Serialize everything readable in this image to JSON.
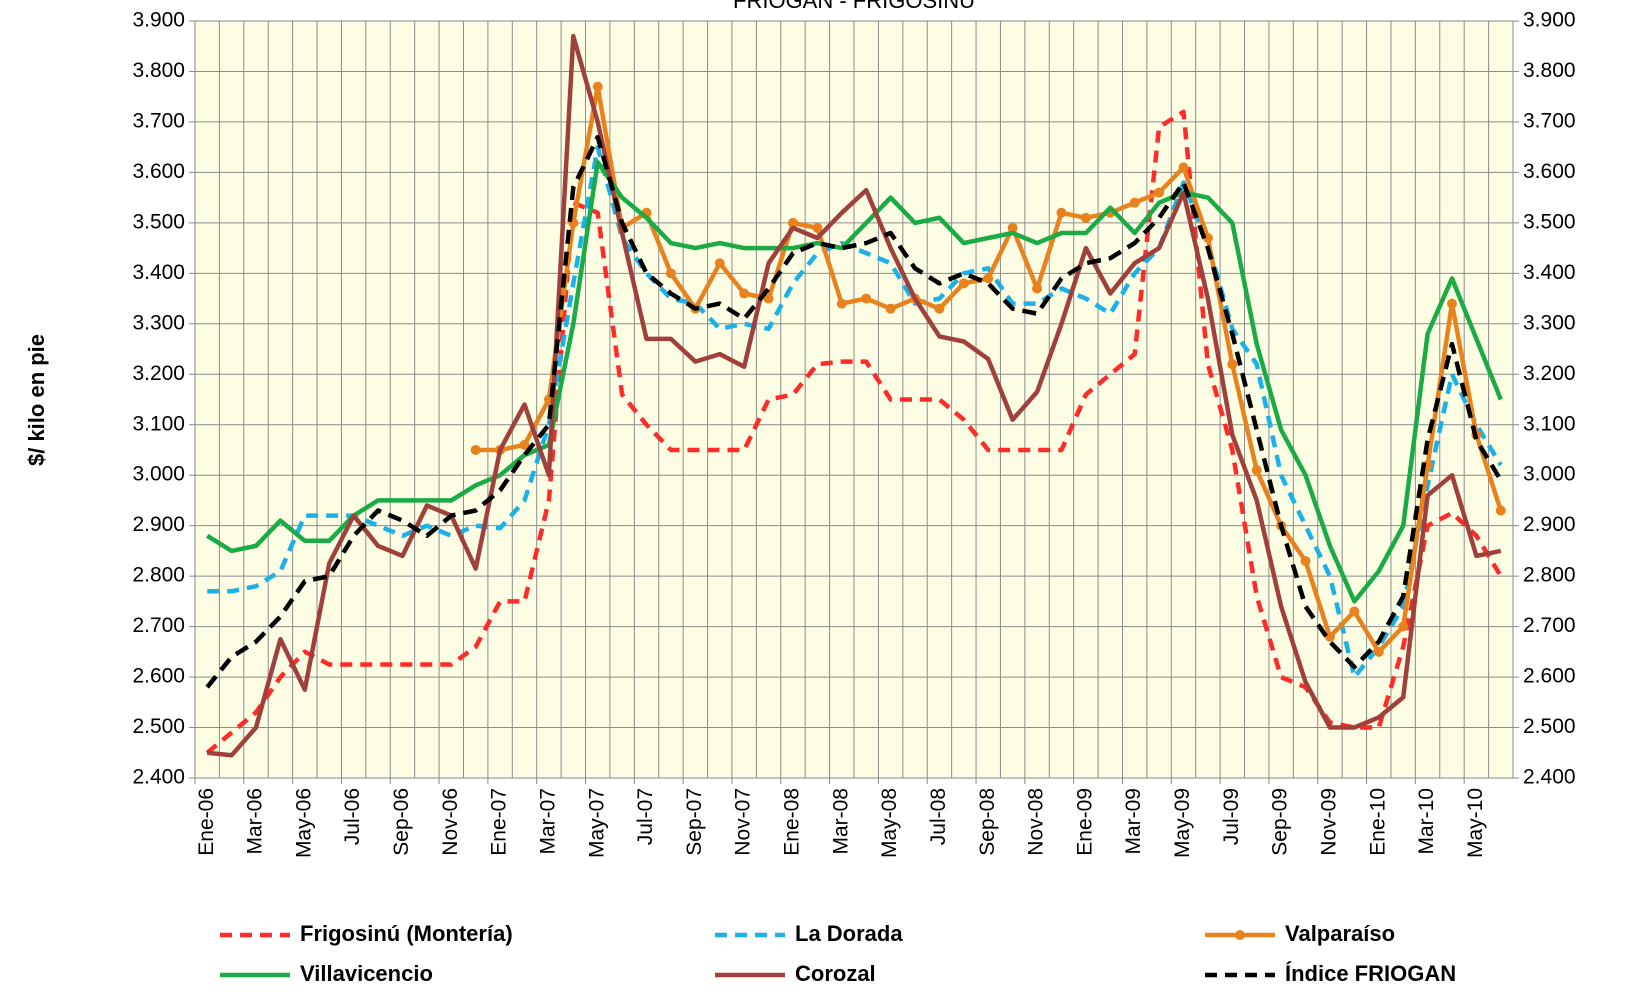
{
  "chart_data": {
    "type": "line",
    "title": "FRIOGAN - FRIGOSINU",
    "y_label": "$/ kilo en pie",
    "categories": [
      "Ene-06",
      null,
      "Mar-06",
      null,
      "May-06",
      null,
      "Jul-06",
      null,
      "Sep-06",
      null,
      "Nov-06",
      null,
      "Ene-07",
      null,
      "Mar-07",
      null,
      "May-07",
      null,
      "Jul-07",
      null,
      "Sep-07",
      null,
      "Nov-07",
      null,
      "Ene-08",
      null,
      "Mar-08",
      null,
      "May-08",
      null,
      "Jul-08",
      null,
      "Sep-08",
      null,
      "Nov-08",
      null,
      "Ene-09",
      null,
      "Mar-09",
      null,
      "May-09",
      null,
      "Jul-09",
      null,
      "Sep-09",
      null,
      "Nov-09",
      null,
      "Ene-10",
      null,
      "Mar-10",
      null,
      "May-10",
      null
    ],
    "ylim": [
      2400,
      3900
    ],
    "yticks": [
      {
        "value": 2400,
        "label": "2.400"
      },
      {
        "value": 2500,
        "label": "2.500"
      },
      {
        "value": 2600,
        "label": "2.600"
      },
      {
        "value": 2700,
        "label": "2.700"
      },
      {
        "value": 2800,
        "label": "2.800"
      },
      {
        "value": 2900,
        "label": "2.900"
      },
      {
        "value": 3000,
        "label": "3.000"
      },
      {
        "value": 3100,
        "label": "3.100"
      },
      {
        "value": 3200,
        "label": "3.200"
      },
      {
        "value": 3300,
        "label": "3.300"
      },
      {
        "value": 3400,
        "label": "3.400"
      },
      {
        "value": 3500,
        "label": "3.500"
      },
      {
        "value": 3600,
        "label": "3.600"
      },
      {
        "value": 3700,
        "label": "3.700"
      },
      {
        "value": 3800,
        "label": "3.800"
      },
      {
        "value": 3900,
        "label": "3.900"
      }
    ],
    "y2lim": [
      2400,
      3900
    ],
    "y2ticks": [
      {
        "value": 2400,
        "label": "2.400"
      },
      {
        "value": 2500,
        "label": "2.500"
      },
      {
        "value": 2600,
        "label": "2.600"
      },
      {
        "value": 2700,
        "label": "2.700"
      },
      {
        "value": 2800,
        "label": "2.800"
      },
      {
        "value": 2900,
        "label": "2.900"
      },
      {
        "value": 3000,
        "label": "3.000"
      },
      {
        "value": 3100,
        "label": "3.100"
      },
      {
        "value": 3200,
        "label": "3.200"
      },
      {
        "value": 3300,
        "label": "3.300"
      },
      {
        "value": 3400,
        "label": "3.400"
      },
      {
        "value": 3500,
        "label": "3.500"
      },
      {
        "value": 3600,
        "label": "3.600"
      },
      {
        "value": 3700,
        "label": "3.700"
      },
      {
        "value": 3800,
        "label": "3.800"
      },
      {
        "value": 3900,
        "label": "3.900"
      }
    ],
    "grid": true,
    "legend": "bottom",
    "series": [
      {
        "name": "Frigosinú (Montería)",
        "color": "#ff2a2a",
        "dashed": true,
        "markers": false,
        "values": [
          2450,
          2490,
          2530,
          2600,
          2650,
          2625,
          2625,
          2625,
          2625,
          2625,
          2625,
          2660,
          2750,
          2750,
          2950,
          3540,
          3520,
          3160,
          3100,
          3050,
          3050,
          3050,
          3050,
          3150,
          3160,
          3220,
          3225,
          3225,
          3150,
          3150,
          3150,
          3110,
          3050,
          3050,
          3050,
          3050,
          3160,
          3200,
          3240,
          3690,
          3720,
          3220,
          3050,
          2760,
          2600,
          2580,
          2510,
          2500,
          2500,
          2660,
          2900,
          2925,
          2880,
          2800
        ]
      },
      {
        "name": "La Dorada",
        "color": "#1ab0e8",
        "dashed": true,
        "markers": false,
        "values": [
          2770,
          2770,
          2780,
          2810,
          2920,
          2920,
          2920,
          2900,
          2880,
          2900,
          2880,
          2900,
          2895,
          2950,
          3100,
          3380,
          3650,
          3470,
          3400,
          3350,
          3340,
          3290,
          3300,
          3290,
          3380,
          3440,
          3460,
          3440,
          3420,
          3340,
          3350,
          3400,
          3410,
          3340,
          3340,
          3370,
          3350,
          3320,
          3400,
          3450,
          3580,
          3460,
          3290,
          3220,
          3000,
          2900,
          2800,
          2600,
          2660,
          2740,
          2980,
          3200,
          3100,
          3020
        ]
      },
      {
        "name": "Valparaíso",
        "color": "#e8821e",
        "dashed": false,
        "markers": true,
        "values": [
          null,
          null,
          null,
          null,
          null,
          null,
          null,
          null,
          null,
          null,
          null,
          3050,
          3050,
          3060,
          3150,
          3500,
          3770,
          3490,
          3520,
          3400,
          3330,
          3420,
          3360,
          3350,
          3500,
          3490,
          3340,
          3350,
          3330,
          3350,
          3330,
          3380,
          3390,
          3490,
          3370,
          3520,
          3510,
          3520,
          3540,
          3560,
          3610,
          3470,
          3220,
          3010,
          2900,
          2830,
          2680,
          2730,
          2650,
          2700,
          3020,
          3340,
          3080,
          2930
        ]
      },
      {
        "name": "Villavicencio",
        "color": "#1aaa46",
        "dashed": false,
        "markers": false,
        "values": [
          2880,
          2850,
          2860,
          2910,
          2870,
          2870,
          2920,
          2950,
          2950,
          2950,
          2950,
          2980,
          3000,
          3040,
          3060,
          3300,
          3620,
          3550,
          3510,
          3460,
          3450,
          3460,
          3450,
          3450,
          3450,
          3460,
          3450,
          3500,
          3550,
          3500,
          3510,
          3460,
          3470,
          3480,
          3460,
          3480,
          3480,
          3530,
          3480,
          3540,
          3560,
          3550,
          3500,
          3260,
          3090,
          3000,
          2860,
          2750,
          2810,
          2900,
          3280,
          3390,
          3270,
          3150
        ]
      },
      {
        "name": "Corozal",
        "color": "#a0403c",
        "dashed": false,
        "markers": false,
        "values": [
          2450,
          2445,
          2500,
          2675,
          2575,
          2825,
          2920,
          2860,
          2840,
          2940,
          2920,
          2815,
          3050,
          3140,
          3000,
          3870,
          3700,
          3480,
          3270,
          3270,
          3225,
          3240,
          3215,
          3420,
          3490,
          3470,
          3520,
          3565,
          3450,
          3350,
          3275,
          3265,
          3230,
          3110,
          3165,
          3300,
          3450,
          3360,
          3420,
          3450,
          3560,
          3350,
          3080,
          2950,
          2740,
          2590,
          2500,
          2500,
          2520,
          2560,
          2960,
          3000,
          2840,
          2850
        ]
      },
      {
        "name": "Índice FRIOGAN",
        "color": "#000000",
        "dashed": true,
        "markers": false,
        "values": [
          2580,
          2640,
          2670,
          2720,
          2790,
          2800,
          2880,
          2930,
          2910,
          2880,
          2920,
          2930,
          2970,
          3040,
          3100,
          3570,
          3670,
          3500,
          3400,
          3360,
          3330,
          3340,
          3310,
          3370,
          3440,
          3460,
          3450,
          3460,
          3480,
          3410,
          3380,
          3400,
          3380,
          3330,
          3320,
          3390,
          3420,
          3430,
          3460,
          3510,
          3580,
          3450,
          3280,
          3090,
          2900,
          2740,
          2670,
          2620,
          2670,
          2760,
          3070,
          3260,
          3070,
          2990
        ]
      }
    ]
  }
}
